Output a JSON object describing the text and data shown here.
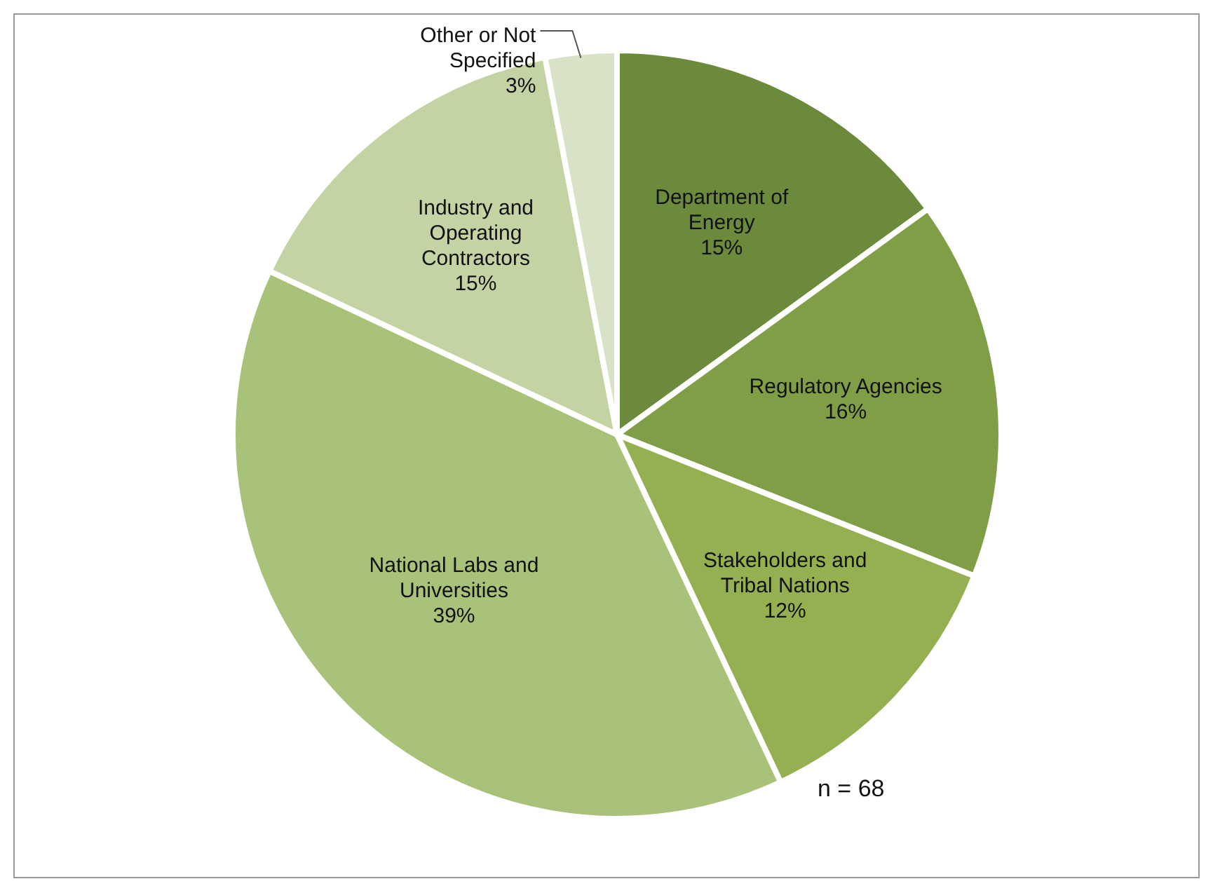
{
  "chart_data": {
    "type": "pie",
    "categories": [
      "Department of Energy",
      "Regulatory Agencies",
      "Stakeholders and Tribal Nations",
      "National Labs and Universities",
      "Industry and Operating Contractors",
      "Other or Not Specified"
    ],
    "values": [
      15,
      16,
      12,
      39,
      15,
      3
    ],
    "value_labels": [
      "15%",
      "16%",
      "12%",
      "39%",
      "15%",
      "3%"
    ],
    "colors": [
      "#6b8a3c",
      "#7f9e45",
      "#94b050",
      "#a9c27a",
      "#c3d3a3",
      "#d8e2c6"
    ],
    "annotations": [
      "n = 68"
    ]
  }
}
